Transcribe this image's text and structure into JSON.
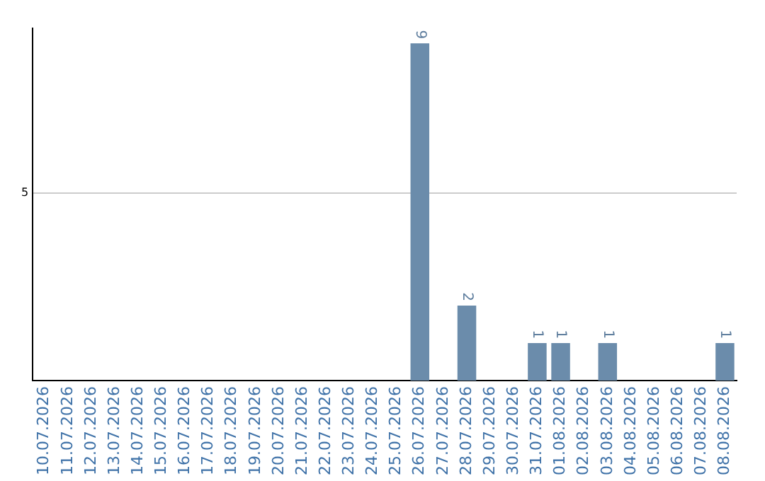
{
  "chart_data": {
    "type": "bar",
    "categories": [
      "10.07.2026",
      "11.07.2026",
      "12.07.2026",
      "13.07.2026",
      "14.07.2026",
      "15.07.2026",
      "16.07.2026",
      "17.07.2026",
      "18.07.2026",
      "19.07.2026",
      "20.07.2026",
      "21.07.2026",
      "22.07.2026",
      "23.07.2026",
      "24.07.2026",
      "25.07.2026",
      "26.07.2026",
      "27.07.2026",
      "28.07.2026",
      "29.07.2026",
      "30.07.2026",
      "31.07.2026",
      "01.08.2026",
      "02.08.2026",
      "03.08.2026",
      "04.08.2026",
      "05.08.2026",
      "06.08.2026",
      "07.08.2026",
      "08.08.2026"
    ],
    "values": [
      null,
      null,
      null,
      null,
      null,
      null,
      null,
      null,
      null,
      null,
      null,
      null,
      null,
      null,
      null,
      null,
      9,
      null,
      2,
      null,
      null,
      1,
      1,
      null,
      1,
      null,
      null,
      null,
      null,
      1
    ],
    "color": "#6b8cab",
    "ylim": [
      0,
      9.4
    ],
    "yticks": [
      5
    ],
    "grid": "y",
    "legend": false,
    "data_labels": true
  }
}
